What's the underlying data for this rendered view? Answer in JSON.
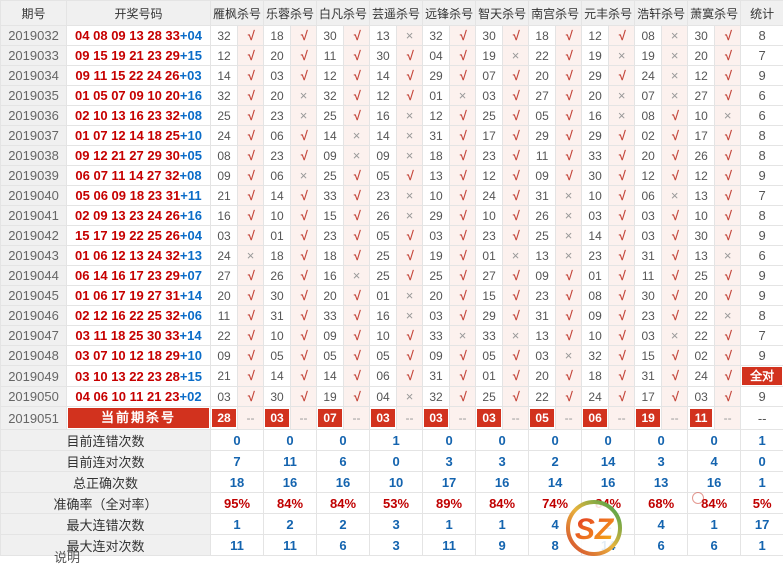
{
  "table": {
    "columns": [
      "期号",
      "开奖号码",
      "雁枫杀号",
      "乐蓉杀号",
      "白凡杀号",
      "芸遥杀号",
      "远锋杀号",
      "智天杀号",
      "南宫杀号",
      "元丰杀号",
      "浩轩杀号",
      "萧寞杀号",
      "统计"
    ],
    "icons": {
      "check": "√",
      "cross": "×",
      "dash": "--"
    },
    "colors": {
      "accent_red": "#d2321e",
      "draw_red": "#c60000",
      "bonus_blue": "#0a6cc8",
      "value_blue": "#1464af",
      "percent_red": "#c00000"
    },
    "rows": [
      {
        "period": "2019032",
        "reds": "04 08 09 13 28 33",
        "bonus": "04",
        "kills": [
          [
            "32",
            "ok"
          ],
          [
            "18",
            "ok"
          ],
          [
            "30",
            "ok"
          ],
          [
            "13",
            "x"
          ],
          [
            "32",
            "ok"
          ],
          [
            "30",
            "ok"
          ],
          [
            "18",
            "ok"
          ],
          [
            "12",
            "ok"
          ],
          [
            "08",
            "x"
          ],
          [
            "30",
            "ok"
          ]
        ],
        "stat": "8"
      },
      {
        "period": "2019033",
        "reds": "09 15 19 21 23 29",
        "bonus": "15",
        "kills": [
          [
            "12",
            "ok"
          ],
          [
            "20",
            "ok"
          ],
          [
            "11",
            "ok"
          ],
          [
            "30",
            "ok"
          ],
          [
            "04",
            "ok"
          ],
          [
            "19",
            "x"
          ],
          [
            "22",
            "ok"
          ],
          [
            "19",
            "x"
          ],
          [
            "19",
            "x"
          ],
          [
            "20",
            "ok"
          ]
        ],
        "stat": "7"
      },
      {
        "period": "2019034",
        "reds": "09 11 15 22 24 26",
        "bonus": "03",
        "kills": [
          [
            "14",
            "ok"
          ],
          [
            "03",
            "ok"
          ],
          [
            "12",
            "ok"
          ],
          [
            "14",
            "ok"
          ],
          [
            "29",
            "ok"
          ],
          [
            "07",
            "ok"
          ],
          [
            "20",
            "ok"
          ],
          [
            "29",
            "ok"
          ],
          [
            "24",
            "x"
          ],
          [
            "12",
            "ok"
          ]
        ],
        "stat": "9"
      },
      {
        "period": "2019035",
        "reds": "01 05 07 09 10 20",
        "bonus": "16",
        "kills": [
          [
            "32",
            "ok"
          ],
          [
            "20",
            "x"
          ],
          [
            "32",
            "ok"
          ],
          [
            "12",
            "ok"
          ],
          [
            "01",
            "x"
          ],
          [
            "03",
            "ok"
          ],
          [
            "27",
            "ok"
          ],
          [
            "20",
            "x"
          ],
          [
            "07",
            "x"
          ],
          [
            "27",
            "ok"
          ]
        ],
        "stat": "6"
      },
      {
        "period": "2019036",
        "reds": "02 10 13 16 23 32",
        "bonus": "08",
        "kills": [
          [
            "25",
            "ok"
          ],
          [
            "23",
            "x"
          ],
          [
            "25",
            "ok"
          ],
          [
            "16",
            "x"
          ],
          [
            "12",
            "ok"
          ],
          [
            "25",
            "ok"
          ],
          [
            "05",
            "ok"
          ],
          [
            "16",
            "x"
          ],
          [
            "08",
            "ok"
          ],
          [
            "10",
            "x"
          ]
        ],
        "stat": "6"
      },
      {
        "period": "2019037",
        "reds": "01 07 12 14 18 25",
        "bonus": "10",
        "kills": [
          [
            "24",
            "ok"
          ],
          [
            "06",
            "ok"
          ],
          [
            "14",
            "x"
          ],
          [
            "14",
            "x"
          ],
          [
            "31",
            "ok"
          ],
          [
            "17",
            "ok"
          ],
          [
            "29",
            "ok"
          ],
          [
            "29",
            "ok"
          ],
          [
            "02",
            "ok"
          ],
          [
            "17",
            "ok"
          ]
        ],
        "stat": "8"
      },
      {
        "period": "2019038",
        "reds": "09 12 21 27 29 30",
        "bonus": "05",
        "kills": [
          [
            "08",
            "ok"
          ],
          [
            "23",
            "ok"
          ],
          [
            "09",
            "x"
          ],
          [
            "09",
            "x"
          ],
          [
            "18",
            "ok"
          ],
          [
            "23",
            "ok"
          ],
          [
            "11",
            "ok"
          ],
          [
            "33",
            "ok"
          ],
          [
            "20",
            "ok"
          ],
          [
            "26",
            "ok"
          ]
        ],
        "stat": "8"
      },
      {
        "period": "2019039",
        "reds": "06 07 11 14 27 32",
        "bonus": "08",
        "kills": [
          [
            "09",
            "ok"
          ],
          [
            "06",
            "x"
          ],
          [
            "25",
            "ok"
          ],
          [
            "05",
            "ok"
          ],
          [
            "13",
            "ok"
          ],
          [
            "12",
            "ok"
          ],
          [
            "09",
            "ok"
          ],
          [
            "30",
            "ok"
          ],
          [
            "12",
            "ok"
          ],
          [
            "12",
            "ok"
          ]
        ],
        "stat": "9"
      },
      {
        "period": "2019040",
        "reds": "05 06 09 18 23 31",
        "bonus": "11",
        "kills": [
          [
            "21",
            "ok"
          ],
          [
            "14",
            "ok"
          ],
          [
            "33",
            "ok"
          ],
          [
            "23",
            "x"
          ],
          [
            "10",
            "ok"
          ],
          [
            "24",
            "ok"
          ],
          [
            "31",
            "x"
          ],
          [
            "10",
            "ok"
          ],
          [
            "06",
            "x"
          ],
          [
            "13",
            "ok"
          ]
        ],
        "stat": "7"
      },
      {
        "period": "2019041",
        "reds": "02 09 13 23 24 26",
        "bonus": "16",
        "kills": [
          [
            "16",
            "ok"
          ],
          [
            "10",
            "ok"
          ],
          [
            "15",
            "ok"
          ],
          [
            "26",
            "x"
          ],
          [
            "29",
            "ok"
          ],
          [
            "10",
            "ok"
          ],
          [
            "26",
            "x"
          ],
          [
            "03",
            "ok"
          ],
          [
            "03",
            "ok"
          ],
          [
            "10",
            "ok"
          ]
        ],
        "stat": "8"
      },
      {
        "period": "2019042",
        "reds": "15 17 19 22 25 26",
        "bonus": "04",
        "kills": [
          [
            "03",
            "ok"
          ],
          [
            "01",
            "ok"
          ],
          [
            "23",
            "ok"
          ],
          [
            "05",
            "ok"
          ],
          [
            "03",
            "ok"
          ],
          [
            "23",
            "ok"
          ],
          [
            "25",
            "x"
          ],
          [
            "14",
            "ok"
          ],
          [
            "03",
            "ok"
          ],
          [
            "30",
            "ok"
          ]
        ],
        "stat": "9"
      },
      {
        "period": "2019043",
        "reds": "01 06 12 13 24 32",
        "bonus": "13",
        "kills": [
          [
            "24",
            "x"
          ],
          [
            "18",
            "ok"
          ],
          [
            "18",
            "ok"
          ],
          [
            "25",
            "ok"
          ],
          [
            "19",
            "ok"
          ],
          [
            "01",
            "x"
          ],
          [
            "13",
            "x"
          ],
          [
            "23",
            "ok"
          ],
          [
            "31",
            "ok"
          ],
          [
            "13",
            "x"
          ]
        ],
        "stat": "6"
      },
      {
        "period": "2019044",
        "reds": "06 14 16 17 23 29",
        "bonus": "07",
        "kills": [
          [
            "27",
            "ok"
          ],
          [
            "26",
            "ok"
          ],
          [
            "16",
            "x"
          ],
          [
            "25",
            "ok"
          ],
          [
            "25",
            "ok"
          ],
          [
            "27",
            "ok"
          ],
          [
            "09",
            "ok"
          ],
          [
            "01",
            "ok"
          ],
          [
            "11",
            "ok"
          ],
          [
            "25",
            "ok"
          ]
        ],
        "stat": "9"
      },
      {
        "period": "2019045",
        "reds": "01 06 17 19 27 31",
        "bonus": "14",
        "kills": [
          [
            "20",
            "ok"
          ],
          [
            "30",
            "ok"
          ],
          [
            "20",
            "ok"
          ],
          [
            "01",
            "x"
          ],
          [
            "20",
            "ok"
          ],
          [
            "15",
            "ok"
          ],
          [
            "23",
            "ok"
          ],
          [
            "08",
            "ok"
          ],
          [
            "30",
            "ok"
          ],
          [
            "20",
            "ok"
          ]
        ],
        "stat": "9"
      },
      {
        "period": "2019046",
        "reds": "02 12 16 22 25 32",
        "bonus": "06",
        "kills": [
          [
            "11",
            "ok"
          ],
          [
            "31",
            "ok"
          ],
          [
            "33",
            "ok"
          ],
          [
            "16",
            "x"
          ],
          [
            "03",
            "ok"
          ],
          [
            "29",
            "ok"
          ],
          [
            "31",
            "ok"
          ],
          [
            "09",
            "ok"
          ],
          [
            "23",
            "ok"
          ],
          [
            "22",
            "x"
          ]
        ],
        "stat": "8"
      },
      {
        "period": "2019047",
        "reds": "03 11 18 25 30 33",
        "bonus": "14",
        "kills": [
          [
            "22",
            "ok"
          ],
          [
            "10",
            "ok"
          ],
          [
            "09",
            "ok"
          ],
          [
            "10",
            "ok"
          ],
          [
            "33",
            "x"
          ],
          [
            "33",
            "x"
          ],
          [
            "13",
            "ok"
          ],
          [
            "10",
            "ok"
          ],
          [
            "03",
            "x"
          ],
          [
            "22",
            "ok"
          ]
        ],
        "stat": "7"
      },
      {
        "period": "2019048",
        "reds": "03 07 10 12 18 29",
        "bonus": "10",
        "kills": [
          [
            "09",
            "ok"
          ],
          [
            "05",
            "ok"
          ],
          [
            "05",
            "ok"
          ],
          [
            "05",
            "ok"
          ],
          [
            "09",
            "ok"
          ],
          [
            "05",
            "ok"
          ],
          [
            "03",
            "x"
          ],
          [
            "32",
            "ok"
          ],
          [
            "15",
            "ok"
          ],
          [
            "02",
            "ok"
          ]
        ],
        "stat": "9"
      },
      {
        "period": "2019049",
        "reds": "03 10 13 22 23 28",
        "bonus": "15",
        "kills": [
          [
            "21",
            "ok"
          ],
          [
            "14",
            "ok"
          ],
          [
            "14",
            "ok"
          ],
          [
            "06",
            "ok"
          ],
          [
            "31",
            "ok"
          ],
          [
            "01",
            "ok"
          ],
          [
            "20",
            "ok"
          ],
          [
            "18",
            "ok"
          ],
          [
            "31",
            "ok"
          ],
          [
            "24",
            "ok"
          ]
        ],
        "stat": "全对",
        "stat_badge": true
      },
      {
        "period": "2019050",
        "reds": "04 06 10 11 21 23",
        "bonus": "02",
        "kills": [
          [
            "03",
            "ok"
          ],
          [
            "30",
            "ok"
          ],
          [
            "19",
            "ok"
          ],
          [
            "04",
            "x"
          ],
          [
            "32",
            "ok"
          ],
          [
            "25",
            "ok"
          ],
          [
            "22",
            "ok"
          ],
          [
            "24",
            "ok"
          ],
          [
            "17",
            "ok"
          ],
          [
            "03",
            "ok"
          ]
        ],
        "stat": "9"
      }
    ],
    "current": {
      "period": "2019051",
      "label": "当前期杀号",
      "kills": [
        "28",
        "03",
        "07",
        "03",
        "03",
        "03",
        "05",
        "06",
        "19",
        "11"
      ],
      "stat": "--"
    },
    "summary": [
      {
        "label": "目前连错次数",
        "type": "count",
        "values": [
          "0",
          "0",
          "0",
          "1",
          "0",
          "0",
          "0",
          "0",
          "0",
          "0"
        ],
        "stat": "1"
      },
      {
        "label": "目前连对次数",
        "type": "count",
        "values": [
          "7",
          "11",
          "6",
          "0",
          "3",
          "3",
          "2",
          "14",
          "3",
          "4"
        ],
        "stat": "0"
      },
      {
        "label": "总正确次数",
        "type": "count",
        "values": [
          "18",
          "16",
          "16",
          "10",
          "17",
          "16",
          "14",
          "16",
          "13",
          "16"
        ],
        "stat": "1"
      },
      {
        "label": "准确率（全对率）",
        "type": "percent",
        "values": [
          "95%",
          "84%",
          "84%",
          "53%",
          "89%",
          "84%",
          "74%",
          "84%",
          "68%",
          "84%"
        ],
        "stat": "5%"
      },
      {
        "label": "最大连错次数",
        "type": "count",
        "values": [
          "1",
          "2",
          "2",
          "3",
          "1",
          "1",
          "4",
          "2",
          "4",
          "1"
        ],
        "stat": "17"
      },
      {
        "label": "最大连对次数",
        "type": "count",
        "values": [
          "11",
          "11",
          "6",
          "3",
          "11",
          "9",
          "8",
          "14",
          "6",
          "6"
        ],
        "stat": "1"
      }
    ]
  },
  "watermark": {
    "text": "SZ"
  },
  "footer_note": "说明"
}
